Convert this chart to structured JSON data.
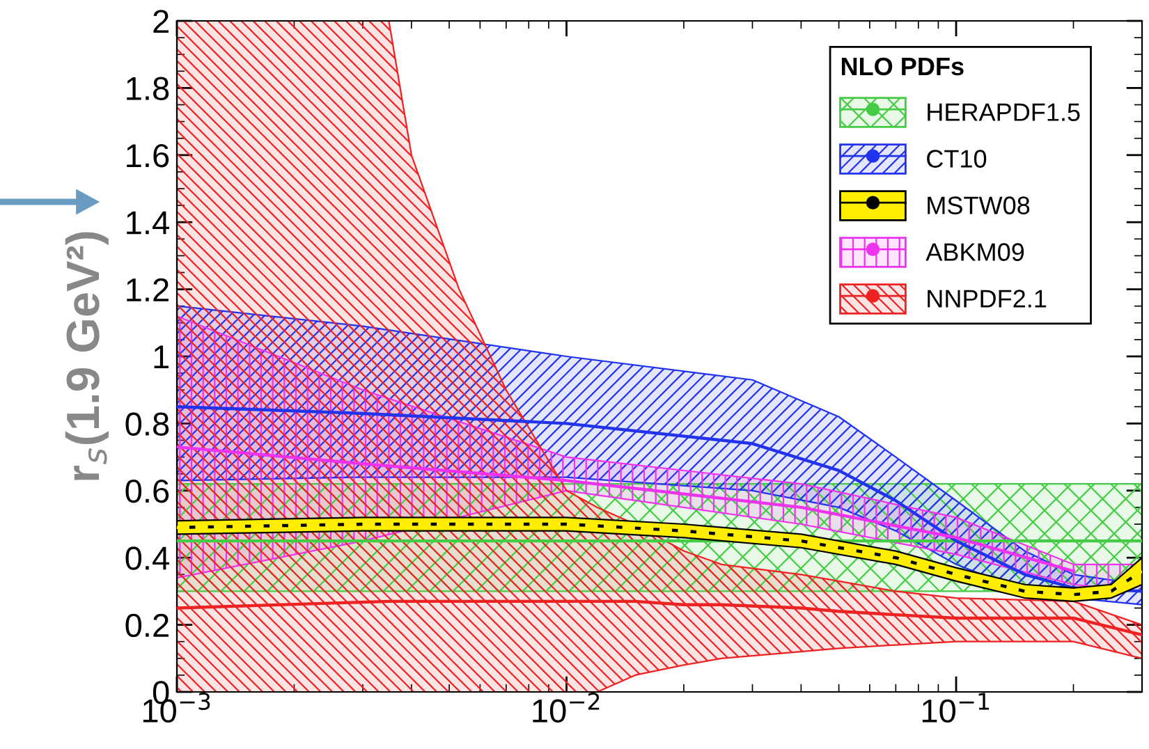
{
  "chart_data": {
    "type": "line",
    "ylabel": "r$_{s}$(1.9 GeV²)",
    "legend_title": "NLO PDFs",
    "legend": "top right",
    "log": "x",
    "xlim": [
      0.001,
      0.3
    ],
    "ylim": [
      0,
      2
    ],
    "xticks": [
      {
        "value": 0.001,
        "label": "10$^{−3}$"
      },
      {
        "value": 0.01,
        "label": "10$^{−2}$"
      },
      {
        "value": 0.1,
        "label": "10$^{−1}$"
      }
    ],
    "yticks": [
      0,
      0.2,
      0.4,
      0.6,
      0.8,
      1,
      1.2,
      1.4,
      1.6,
      1.8,
      2
    ],
    "series": [
      {
        "name": "HERAPDF1.5",
        "color": "#44cc44",
        "x": [
          0.001,
          0.01,
          0.1,
          0.3
        ],
        "values": [
          0.45,
          0.45,
          0.45,
          0.45
        ],
        "lower": [
          0.3,
          0.3,
          0.3,
          0.3
        ],
        "upper": [
          0.62,
          0.62,
          0.62,
          0.62
        ]
      },
      {
        "name": "CT10",
        "color": "#2233ee",
        "x": [
          0.001,
          0.003,
          0.01,
          0.03,
          0.05,
          0.07,
          0.1,
          0.15,
          0.2,
          0.3
        ],
        "values": [
          0.85,
          0.83,
          0.8,
          0.74,
          0.66,
          0.57,
          0.45,
          0.35,
          0.31,
          0.3
        ],
        "lower": [
          0.63,
          0.64,
          0.64,
          0.6,
          0.55,
          0.48,
          0.38,
          0.3,
          0.28,
          0.26
        ],
        "upper": [
          1.15,
          1.09,
          1.0,
          0.93,
          0.82,
          0.7,
          0.57,
          0.42,
          0.35,
          0.32
        ]
      },
      {
        "name": "MSTW08",
        "color": "#ffee00",
        "line_style": "dashed",
        "x": [
          0.001,
          0.003,
          0.01,
          0.02,
          0.04,
          0.07,
          0.1,
          0.15,
          0.2,
          0.25,
          0.3
        ],
        "values": [
          0.49,
          0.5,
          0.5,
          0.48,
          0.45,
          0.4,
          0.35,
          0.3,
          0.29,
          0.3,
          0.36
        ],
        "lower": [
          0.47,
          0.48,
          0.48,
          0.46,
          0.43,
          0.38,
          0.33,
          0.28,
          0.27,
          0.28,
          0.32
        ],
        "upper": [
          0.51,
          0.52,
          0.52,
          0.5,
          0.47,
          0.42,
          0.37,
          0.32,
          0.31,
          0.32,
          0.4
        ]
      },
      {
        "name": "ABKM09",
        "color": "#ee33ee",
        "x": [
          0.001,
          0.003,
          0.01,
          0.04,
          0.1,
          0.2,
          0.3
        ],
        "values": [
          0.73,
          0.68,
          0.63,
          0.55,
          0.46,
          0.36,
          null
        ],
        "lower": [
          0.34,
          0.45,
          0.6,
          0.5,
          0.41,
          0.32,
          0.3
        ],
        "upper": [
          1.12,
          0.9,
          0.7,
          0.62,
          0.52,
          0.38,
          0.38
        ]
      },
      {
        "name": "NNPDF2.1",
        "color": "#ee2222",
        "x": [
          0.001,
          0.0035,
          0.004,
          0.0053,
          0.007,
          0.01,
          0.012,
          0.015,
          0.02,
          0.025,
          0.04,
          0.05,
          0.07,
          0.1,
          0.2,
          0.3
        ],
        "values": [
          0.25,
          0.27,
          0.27,
          0.27,
          0.27,
          0.27,
          0.27,
          0.27,
          0.26,
          0.26,
          0.25,
          0.24,
          0.23,
          0.22,
          0.22,
          0.17
        ],
        "lower": [
          0,
          0,
          0,
          0,
          0,
          0,
          0,
          0.05,
          0.08,
          0.1,
          0.12,
          0.13,
          0.14,
          0.15,
          0.15,
          0.1
        ],
        "upper": [
          2,
          2,
          1.6,
          1.2,
          0.9,
          0.6,
          0.55,
          0.5,
          0.42,
          0.38,
          0.35,
          0.33,
          0.3,
          0.28,
          0.27,
          0.2
        ]
      }
    ]
  }
}
